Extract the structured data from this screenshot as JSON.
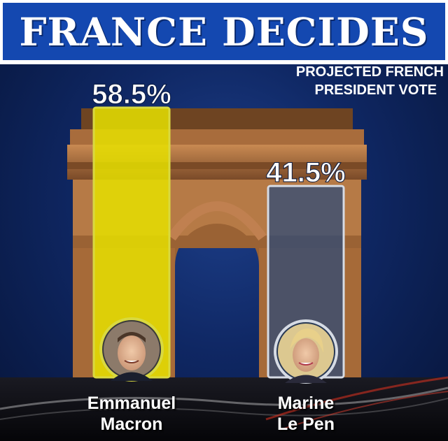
{
  "title": "FRANCE DECIDES",
  "subtitle": [
    "PROJECTED FRENCH",
    "PRESIDENT VOTE"
  ],
  "colors": {
    "macron": "#e6e000",
    "lepen": "#2a4a7a",
    "header": "#1448b0"
  },
  "chart_data": {
    "type": "bar",
    "title": "FRANCE DECIDES",
    "subtitle": "PROJECTED FRENCH PRESIDENT VOTE",
    "categories": [
      "Emmanuel Macron",
      "Marine Le Pen"
    ],
    "values": [
      58.5,
      41.5
    ],
    "value_labels": [
      "58.5%",
      "41.5%"
    ],
    "ylim": [
      0,
      100
    ],
    "xlabel": "",
    "ylabel": "",
    "grid": false
  },
  "candidates": [
    {
      "first": "Emmanuel",
      "last": "Macron",
      "label": "58.5%"
    },
    {
      "first": "Marine",
      "last": "Le Pen",
      "label": "41.5%"
    }
  ]
}
